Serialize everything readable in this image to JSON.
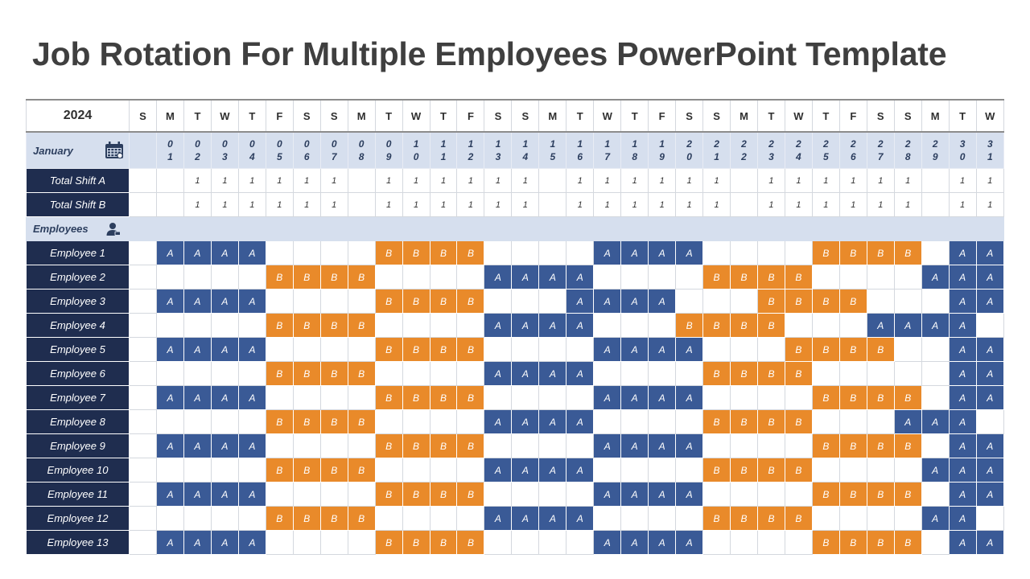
{
  "title": "Job Rotation For Multiple Employees PowerPoint Template",
  "year": "2024",
  "month": "January",
  "weekdays": [
    "S",
    "M",
    "T",
    "W",
    "T",
    "F",
    "S",
    "S",
    "M",
    "T",
    "W",
    "T",
    "F",
    "S",
    "S",
    "M",
    "T",
    "W",
    "T",
    "F",
    "S",
    "S",
    "M",
    "T",
    "W",
    "T",
    "F",
    "S",
    "S",
    "M",
    "T",
    "W"
  ],
  "dates": [
    "",
    "01",
    "02",
    "03",
    "04",
    "05",
    "06",
    "07",
    "08",
    "09",
    "10",
    "11",
    "12",
    "13",
    "14",
    "15",
    "16",
    "17",
    "18",
    "19",
    "20",
    "21",
    "22",
    "23",
    "24",
    "25",
    "26",
    "27",
    "28",
    "29",
    "30",
    "31"
  ],
  "totals": [
    {
      "label": "Total Shift A",
      "values": [
        "",
        "",
        "1",
        "1",
        "1",
        "1",
        "1",
        "1",
        "",
        "1",
        "1",
        "1",
        "1",
        "1",
        "1",
        "",
        "1",
        "1",
        "1",
        "1",
        "1",
        "1",
        "",
        "1",
        "1",
        "1",
        "1",
        "1",
        "1",
        "",
        "1",
        "1"
      ]
    },
    {
      "label": "Total Shift B",
      "values": [
        "",
        "",
        "1",
        "1",
        "1",
        "1",
        "1",
        "1",
        "",
        "1",
        "1",
        "1",
        "1",
        "1",
        "1",
        "",
        "1",
        "1",
        "1",
        "1",
        "1",
        "1",
        "",
        "1",
        "1",
        "1",
        "1",
        "1",
        "1",
        "",
        "1",
        "1"
      ]
    }
  ],
  "employees_label": "Employees",
  "employees": [
    {
      "name": "Employee 1",
      "shifts": [
        "",
        "A",
        "A",
        "A",
        "A",
        "",
        "",
        "",
        "",
        "B",
        "B",
        "B",
        "B",
        "",
        "",
        "",
        "",
        "A",
        "A",
        "A",
        "A",
        "",
        "",
        "",
        "",
        "B",
        "B",
        "B",
        "B",
        "",
        "A",
        "A"
      ]
    },
    {
      "name": "Employee 2",
      "shifts": [
        "",
        "",
        "",
        "",
        "",
        "B",
        "B",
        "B",
        "B",
        "",
        "",
        "",
        "",
        "A",
        "A",
        "A",
        "A",
        "",
        "",
        "",
        "",
        "B",
        "B",
        "B",
        "B",
        "",
        "",
        "",
        "",
        "A",
        "A",
        "A"
      ]
    },
    {
      "name": "Employee 3",
      "shifts": [
        "",
        "A",
        "A",
        "A",
        "A",
        "",
        "",
        "",
        "",
        "B",
        "B",
        "B",
        "B",
        "",
        "",
        "",
        "A",
        "A",
        "A",
        "A",
        "",
        "",
        "",
        "B",
        "B",
        "B",
        "B",
        "",
        "",
        "",
        "A",
        "A"
      ]
    },
    {
      "name": "Employee 4",
      "shifts": [
        "",
        "",
        "",
        "",
        "",
        "B",
        "B",
        "B",
        "B",
        "",
        "",
        "",
        "",
        "A",
        "A",
        "A",
        "A",
        "",
        "",
        "",
        "B",
        "B",
        "B",
        "B",
        "",
        "",
        "",
        "A",
        "A",
        "A",
        "A",
        ""
      ]
    },
    {
      "name": "Employee 5",
      "shifts": [
        "",
        "A",
        "A",
        "A",
        "A",
        "",
        "",
        "",
        "",
        "B",
        "B",
        "B",
        "B",
        "",
        "",
        "",
        "",
        "A",
        "A",
        "A",
        "A",
        "",
        "",
        "",
        "B",
        "B",
        "B",
        "B",
        "",
        "",
        "A",
        "A"
      ]
    },
    {
      "name": "Employee 6",
      "shifts": [
        "",
        "",
        "",
        "",
        "",
        "B",
        "B",
        "B",
        "B",
        "",
        "",
        "",
        "",
        "A",
        "A",
        "A",
        "A",
        "",
        "",
        "",
        "",
        "B",
        "B",
        "B",
        "B",
        "",
        "",
        "",
        "",
        "",
        "A",
        "A"
      ]
    },
    {
      "name": "Employee 7",
      "shifts": [
        "",
        "A",
        "A",
        "A",
        "A",
        "",
        "",
        "",
        "",
        "B",
        "B",
        "B",
        "B",
        "",
        "",
        "",
        "",
        "A",
        "A",
        "A",
        "A",
        "",
        "",
        "",
        "",
        "B",
        "B",
        "B",
        "B",
        "",
        "A",
        "A"
      ]
    },
    {
      "name": "Employee 8",
      "shifts": [
        "",
        "",
        "",
        "",
        "",
        "B",
        "B",
        "B",
        "B",
        "",
        "",
        "",
        "",
        "A",
        "A",
        "A",
        "A",
        "",
        "",
        "",
        "",
        "B",
        "B",
        "B",
        "B",
        "",
        "",
        "",
        "A",
        "A",
        "A",
        ""
      ]
    },
    {
      "name": "Employee 9",
      "shifts": [
        "",
        "A",
        "A",
        "A",
        "A",
        "",
        "",
        "",
        "",
        "B",
        "B",
        "B",
        "B",
        "",
        "",
        "",
        "",
        "A",
        "A",
        "A",
        "A",
        "",
        "",
        "",
        "",
        "B",
        "B",
        "B",
        "B",
        "",
        "A",
        "A"
      ]
    },
    {
      "name": "Employee 10",
      "shifts": [
        "",
        "",
        "",
        "",
        "",
        "B",
        "B",
        "B",
        "B",
        "",
        "",
        "",
        "",
        "A",
        "A",
        "A",
        "A",
        "",
        "",
        "",
        "",
        "B",
        "B",
        "B",
        "B",
        "",
        "",
        "",
        "",
        "A",
        "A",
        "A"
      ]
    },
    {
      "name": "Employee 11",
      "shifts": [
        "",
        "A",
        "A",
        "A",
        "A",
        "",
        "",
        "",
        "",
        "B",
        "B",
        "B",
        "B",
        "",
        "",
        "",
        "",
        "A",
        "A",
        "A",
        "A",
        "",
        "",
        "",
        "",
        "B",
        "B",
        "B",
        "B",
        "",
        "A",
        "A"
      ]
    },
    {
      "name": "Employee 12",
      "shifts": [
        "",
        "",
        "",
        "",
        "",
        "B",
        "B",
        "B",
        "B",
        "",
        "",
        "",
        "",
        "A",
        "A",
        "A",
        "A",
        "",
        "",
        "",
        "",
        "B",
        "B",
        "B",
        "B",
        "",
        "",
        "",
        "",
        "A",
        "A",
        ""
      ]
    },
    {
      "name": "Employee 13",
      "shifts": [
        "",
        "A",
        "A",
        "A",
        "A",
        "",
        "",
        "",
        "",
        "B",
        "B",
        "B",
        "B",
        "",
        "",
        "",
        "",
        "A",
        "A",
        "A",
        "A",
        "",
        "",
        "",
        "",
        "B",
        "B",
        "B",
        "B",
        "",
        "A",
        "A"
      ]
    }
  ],
  "colors": {
    "shift_a": "#3a5a96",
    "shift_b": "#e98a2a",
    "label_bg": "#1f2d4f",
    "band_bg": "#d6dfee"
  },
  "icons": {
    "month": "calendar-icon",
    "employees": "user-icon"
  }
}
